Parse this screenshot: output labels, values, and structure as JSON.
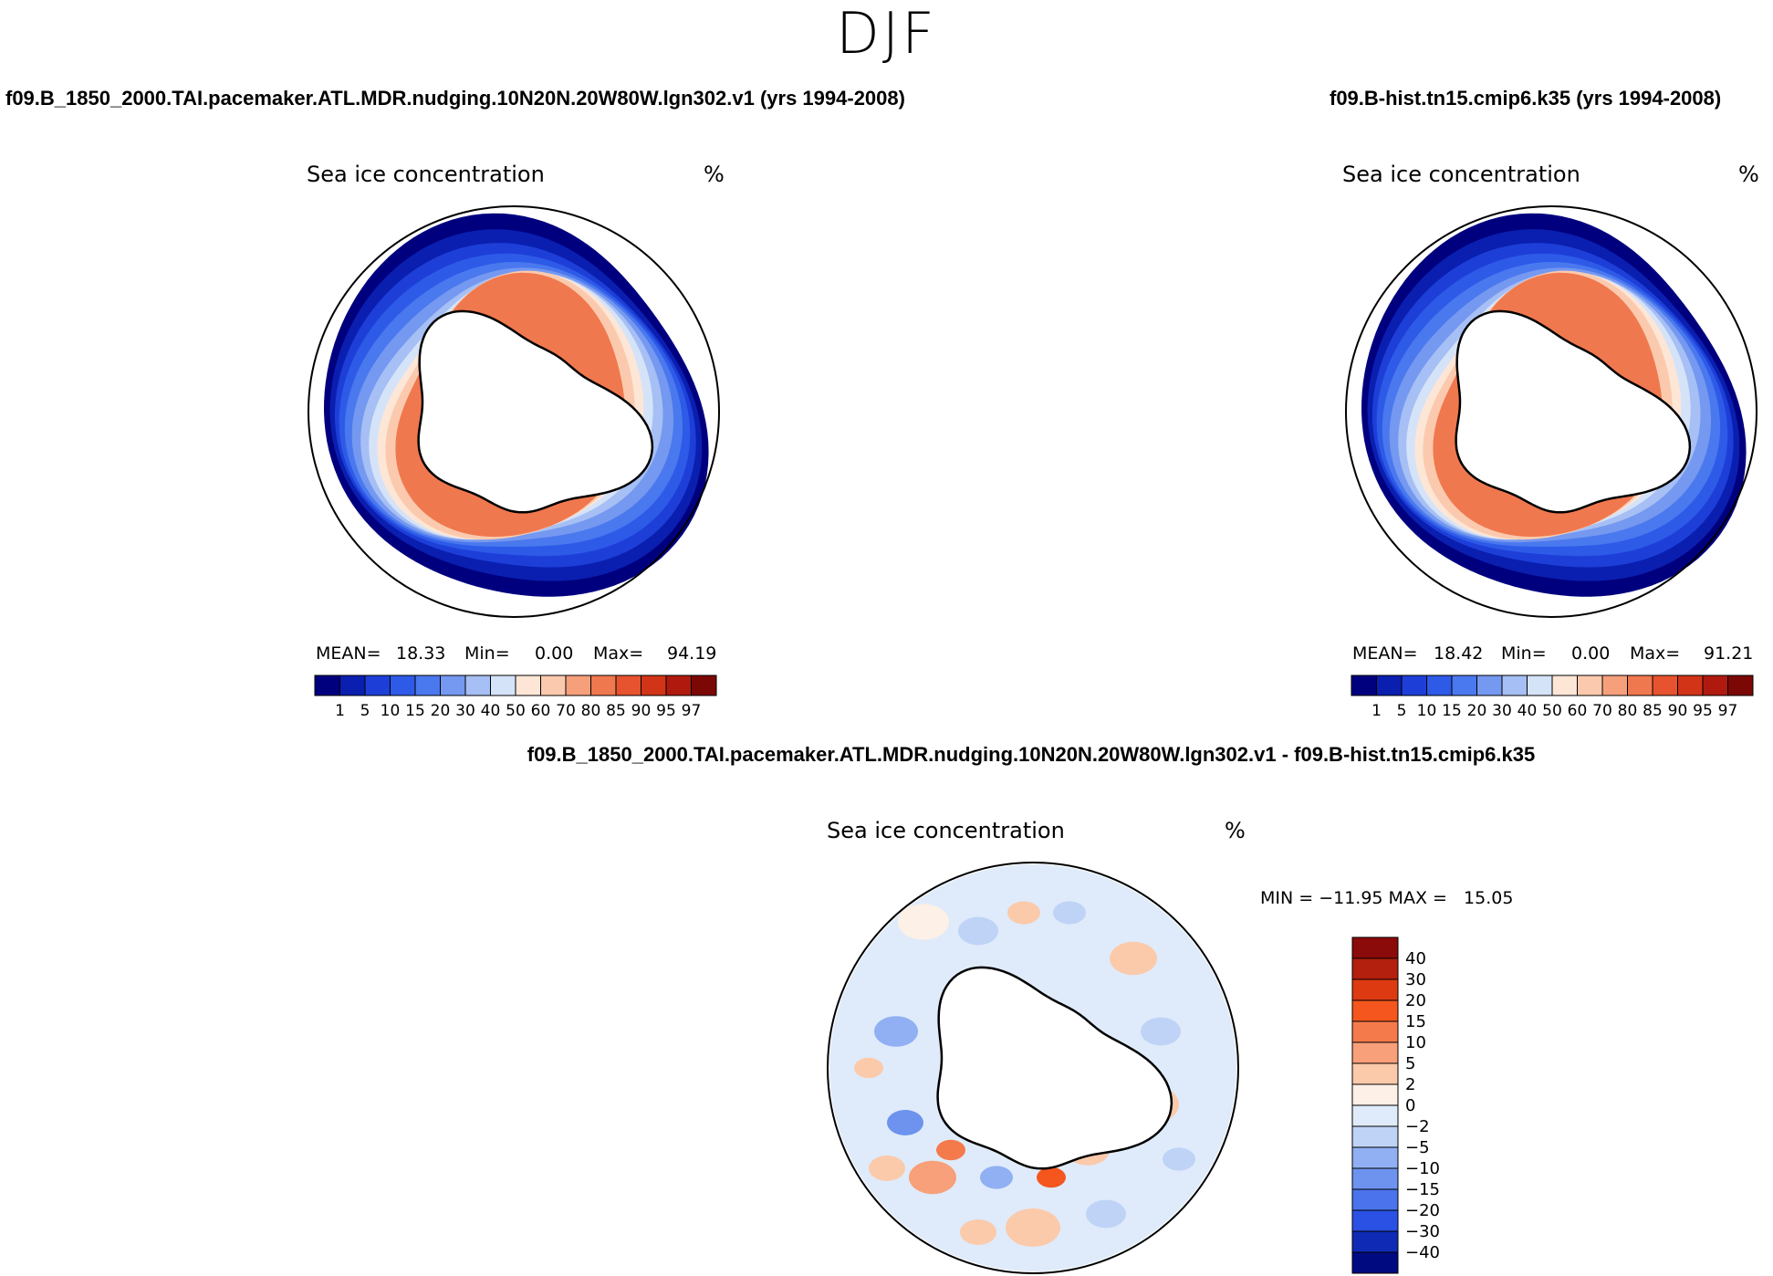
{
  "season": "DJF",
  "panels": [
    {
      "case_title": "f09.B_1850_2000.TAI.pacemaker.ATL.MDR.nudging.10N20N.20W80W.lgn302.v1 (yrs 1994-2008)",
      "var_title": "Sea ice concentration",
      "units": "%",
      "stats": {
        "mean_label": "MEAN=",
        "mean": "18.33",
        "min_label": "Min=",
        "min": "0.00",
        "max_label": "Max=",
        "max": "94.19"
      }
    },
    {
      "case_title": "f09.B-hist.tn15.cmip6.k35 (yrs 1994-2008)",
      "var_title": "Sea ice concentration",
      "units": "%",
      "stats": {
        "mean_label": "MEAN=",
        "mean": "18.42",
        "min_label": "Min=",
        "min": "0.00",
        "max_label": "Max=",
        "max": "91.21"
      }
    }
  ],
  "diff_panel": {
    "case_title": "f09.B_1850_2000.TAI.pacemaker.ATL.MDR.nudging.10N20N.20W80W.lgn302.v1 - f09.B-hist.tn15.cmip6.k35",
    "var_title": "Sea ice concentration",
    "units": "%",
    "minmax": "MIN = −11.95 MAX =   15.05"
  },
  "chart_data": [
    {
      "type": "heatmap",
      "projection": "south-polar-stereographic",
      "title": "Sea ice concentration",
      "units": "%",
      "mean": 18.33,
      "min": 0.0,
      "max": 94.19,
      "levels": [
        "1",
        "5",
        "10",
        "15",
        "20",
        "30",
        "40",
        "50",
        "60",
        "70",
        "80",
        "85",
        "90",
        "95",
        "97"
      ],
      "colors": [
        "#00007f",
        "#0a1fb0",
        "#1d3fd8",
        "#2e5ae8",
        "#4a78ee",
        "#7598f0",
        "#a6bff4",
        "#d5e3f9",
        "#fde6d6",
        "#fbcaae",
        "#f6a07b",
        "#f0784e",
        "#e7522f",
        "#d23418",
        "#b01a0e",
        "#7c0806"
      ]
    },
    {
      "type": "heatmap",
      "projection": "south-polar-stereographic",
      "title": "Sea ice concentration",
      "units": "%",
      "mean": 18.42,
      "min": 0.0,
      "max": 91.21,
      "levels": [
        "1",
        "5",
        "10",
        "15",
        "20",
        "30",
        "40",
        "50",
        "60",
        "70",
        "80",
        "85",
        "90",
        "95",
        "97"
      ],
      "colors": [
        "#00007f",
        "#0a1fb0",
        "#1d3fd8",
        "#2e5ae8",
        "#4a78ee",
        "#7598f0",
        "#a6bff4",
        "#d5e3f9",
        "#fde6d6",
        "#fbcaae",
        "#f6a07b",
        "#f0784e",
        "#e7522f",
        "#d23418",
        "#b01a0e",
        "#7c0806"
      ]
    },
    {
      "type": "heatmap",
      "projection": "south-polar-stereographic",
      "title": "Sea ice concentration",
      "units": "%",
      "min": -11.95,
      "max": 15.05,
      "levels": [
        "40",
        "30",
        "20",
        "15",
        "10",
        "5",
        "2",
        "0",
        "−2",
        "−5",
        "−10",
        "−15",
        "−20",
        "−30",
        "−40"
      ],
      "colors": [
        "#8b0a0a",
        "#b3200d",
        "#dd3a12",
        "#f4561e",
        "#f57a4b",
        "#f7a07a",
        "#fbcaab",
        "#fdf0e6",
        "#dfebfa",
        "#bfd3f7",
        "#90b0f3",
        "#6d93ef",
        "#4a73ec",
        "#2a50e4",
        "#0f2bb6",
        "#000a80"
      ]
    }
  ]
}
